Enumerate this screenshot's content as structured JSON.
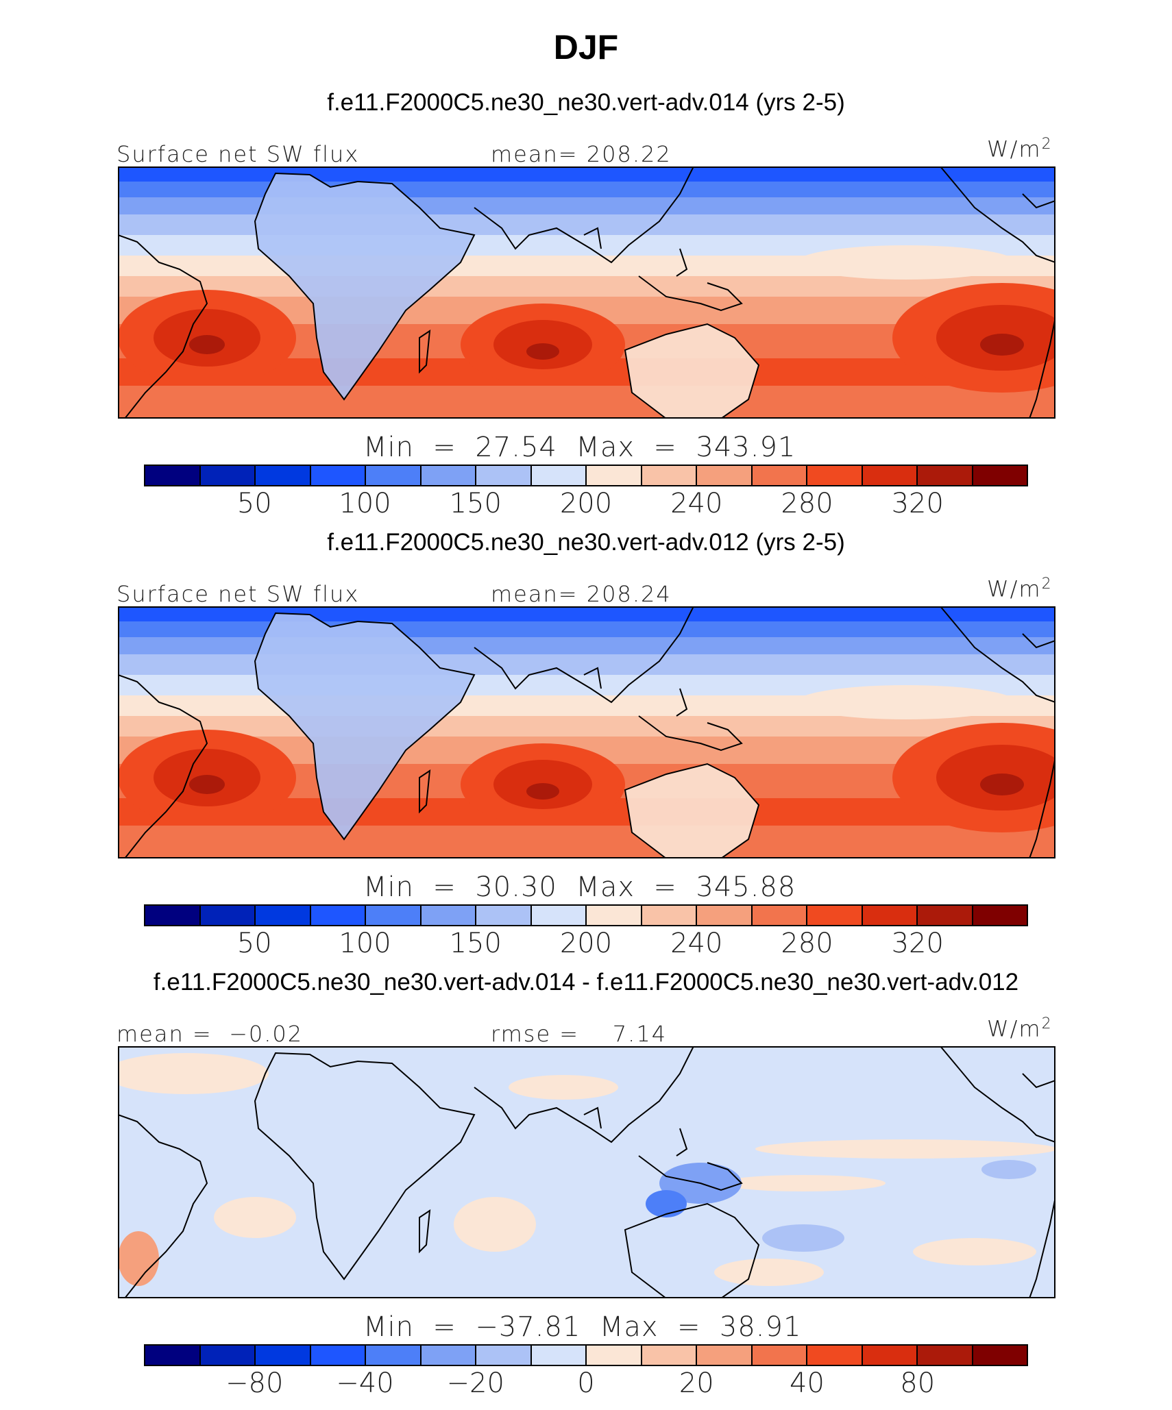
{
  "title": "DJF",
  "palette": [
    "#00007f",
    "#0022b8",
    "#0039e0",
    "#1e56ff",
    "#4d7ff8",
    "#7ea1f5",
    "#acc2f6",
    "#d6e3fa",
    "#fbe6d6",
    "#f9c3a8",
    "#f5a07d",
    "#f2744d",
    "#f04a20",
    "#d92e0f",
    "#ab1a0a",
    "#7f0000"
  ],
  "panels": [
    {
      "case_title": "f.e11.F2000C5.ne30_ne30.vert-adv.014 (yrs 2-5)",
      "left_label": "Surface net SW flux",
      "center_label": "mean= 208.22",
      "units": "W/m",
      "units_sup": "2",
      "min_label": "Min  =",
      "min_value": "27.54",
      "max_label": "Max  =",
      "max_value": "343.91",
      "ticks": [
        "50",
        "100",
        "150",
        "200",
        "240",
        "280",
        "320"
      ],
      "kind": "abs"
    },
    {
      "case_title": "f.e11.F2000C5.ne30_ne30.vert-adv.012 (yrs 2-5)",
      "left_label": "Surface net SW flux",
      "center_label": "mean= 208.24",
      "units": "W/m",
      "units_sup": "2",
      "min_label": "Min  =",
      "min_value": "30.30",
      "max_label": "Max  =",
      "max_value": "345.88",
      "ticks": [
        "50",
        "100",
        "150",
        "200",
        "240",
        "280",
        "320"
      ],
      "kind": "abs"
    },
    {
      "case_title": "f.e11.F2000C5.ne30_ne30.vert-adv.014 - f.e11.F2000C5.ne30_ne30.vert-adv.012",
      "left_label": "mean =  −0.02",
      "center_label": "rmse =    7.14",
      "units": "W/m",
      "units_sup": "2",
      "min_label": "Min  =",
      "min_value": "−37.81",
      "max_label": "Max  =",
      "max_value": "38.91",
      "ticks": [
        "−80",
        "−40",
        "−20",
        "0",
        "20",
        "40",
        "80"
      ],
      "kind": "diff"
    }
  ]
}
